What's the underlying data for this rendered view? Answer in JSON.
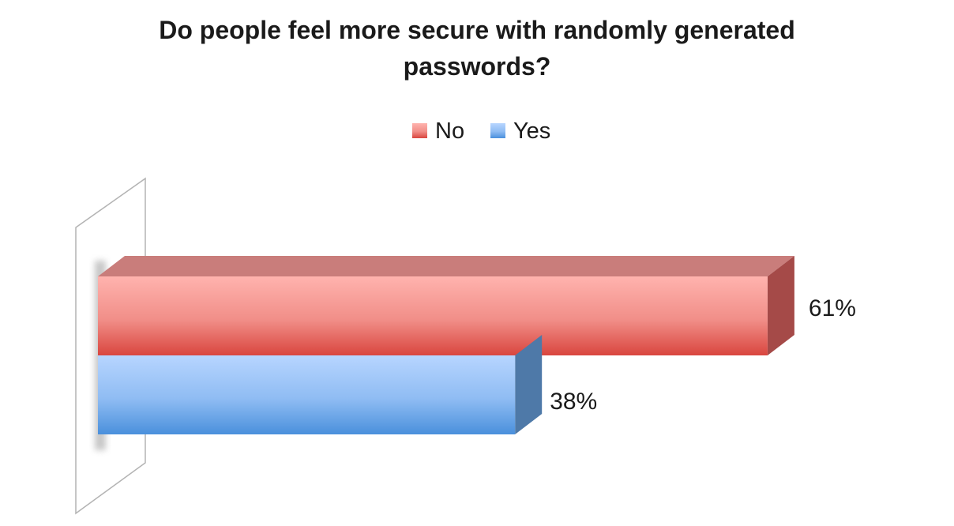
{
  "chart_data": {
    "type": "bar",
    "orientation": "horizontal",
    "style": "3d",
    "title_lines": [
      "Do people feel more secure with randomly generated",
      "passwords?"
    ],
    "categories": [
      "No",
      "Yes"
    ],
    "values": [
      61,
      38
    ],
    "labels": [
      "61%",
      "38%"
    ],
    "unit": "%",
    "colors": [
      "#e8605a",
      "#6aa8e8"
    ],
    "xlim": [
      0,
      100
    ],
    "grid": false,
    "legend_position": "top"
  }
}
